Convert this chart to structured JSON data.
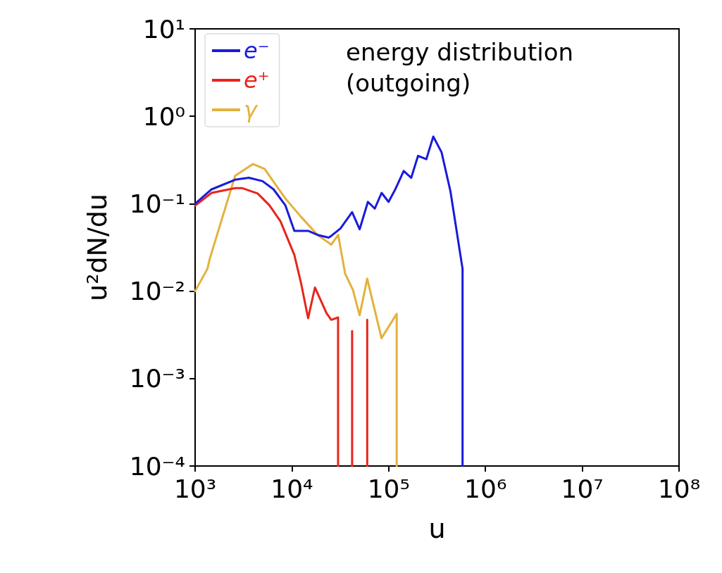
{
  "chart_data": {
    "type": "line",
    "xlabel": "u",
    "ylabel": "u²dN/du",
    "annotations": [
      "energy distribution\n(outgoing)"
    ],
    "log": "xy",
    "legend": "top left",
    "grid": false,
    "line_style": "solid",
    "marker": "none",
    "xlim": [
      1000,
      100000000
    ],
    "ylim": [
      0.0001,
      10
    ],
    "xticks": [
      {
        "value": 1000,
        "label": "10³"
      },
      {
        "value": 10000,
        "label": "10⁴"
      },
      {
        "value": 100000,
        "label": "10⁵"
      },
      {
        "value": 1000000,
        "label": "10⁶"
      },
      {
        "value": 10000000,
        "label": "10⁷"
      },
      {
        "value": 100000000,
        "label": "10⁸"
      }
    ],
    "yticks": [
      {
        "value": 0.0001,
        "label": "10⁻⁴"
      },
      {
        "value": 0.001,
        "label": "10⁻³"
      },
      {
        "value": 0.01,
        "label": "10⁻²"
      },
      {
        "value": 0.1,
        "label": "10⁻¹"
      },
      {
        "value": 1,
        "label": "10⁰"
      },
      {
        "value": 10,
        "label": "10¹"
      }
    ],
    "series": [
      {
        "name": "e⁻",
        "color": "#1a1adc",
        "x": [
          1000,
          1480,
          2590,
          3590,
          4980,
          6470,
          8550,
          10600,
          14700,
          18400,
          24000,
          25600,
          31700,
          41900,
          50100,
          61000,
          71800,
          84500,
          99700,
          117000,
          143000,
          171000,
          201000,
          245000,
          289000,
          352000,
          435000,
          580000,
          580000
        ],
        "values": [
          0.1,
          0.146,
          0.188,
          0.198,
          0.181,
          0.146,
          0.096,
          0.049,
          0.049,
          0.044,
          0.041,
          0.043,
          0.052,
          0.08,
          0.051,
          0.105,
          0.088,
          0.133,
          0.105,
          0.146,
          0.237,
          0.198,
          0.353,
          0.323,
          0.586,
          0.387,
          0.138,
          0.018,
          0.0001
        ]
      },
      {
        "name": "e⁺",
        "color": "#e8241c",
        "x": [
          1000,
          1480,
          2590,
          3050,
          4430,
          5860,
          7620,
          10600,
          12400,
          14700,
          17300,
          22800,
          25500,
          30000,
          30000,
          36000,
          41900,
          41900,
          50000,
          60000,
          60000
        ],
        "values": [
          0.095,
          0.133,
          0.151,
          0.151,
          0.131,
          0.096,
          0.063,
          0.026,
          0.0125,
          0.0049,
          0.011,
          0.0056,
          0.0047,
          0.005,
          0.0001,
          null,
          0.0001,
          0.0035,
          null,
          0.0001,
          0.0047
        ]
      },
      {
        "name": "γ",
        "color": "#e3b23c",
        "x": [
          1000,
          1340,
          1410,
          2590,
          3960,
          5220,
          8550,
          12400,
          18400,
          25500,
          30100,
          35500,
          42600,
          50100,
          60000,
          84300,
          121000,
          121000
        ],
        "values": [
          0.01,
          0.018,
          0.023,
          0.209,
          0.284,
          0.25,
          0.115,
          0.071,
          0.044,
          0.034,
          0.044,
          0.0158,
          0.0104,
          0.0053,
          0.0139,
          0.0029,
          0.0055,
          0.0001
        ]
      }
    ]
  }
}
